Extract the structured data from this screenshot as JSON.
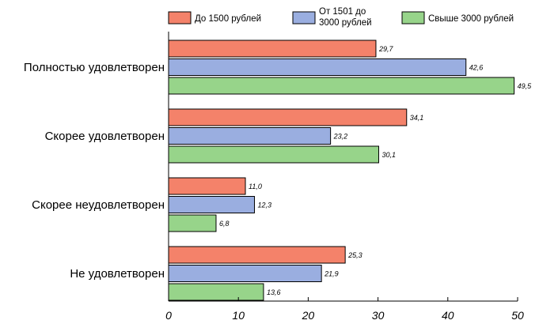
{
  "chart_data": {
    "type": "bar",
    "orientation": "horizontal",
    "title": "",
    "xlabel": "",
    "ylabel": "",
    "categories": [
      "Полностью удовлетворен",
      "Скорее удовлетворен",
      "Скорее неудовлетворен",
      "Не удовлетворен"
    ],
    "series": [
      {
        "name": "До 1500 рублей",
        "color": "#f4826a",
        "values": [
          29.7,
          34.1,
          11.0,
          25.3
        ],
        "labels": [
          "29,7",
          "34,1",
          "11,0",
          "25,3"
        ]
      },
      {
        "name_lines": [
          "От 1501 до",
          "3000 рублей"
        ],
        "color": "#9aaee0",
        "values": [
          42.6,
          23.2,
          12.3,
          21.9
        ],
        "labels": [
          "42,6",
          "23,2",
          "12,3",
          "21,9"
        ]
      },
      {
        "name": "Свыше 3000 рублей",
        "color": "#97d48a",
        "values": [
          49.5,
          30.1,
          6.8,
          13.6
        ],
        "labels": [
          "49,5",
          "30,1",
          "6,8",
          "13,6"
        ]
      }
    ],
    "xlim": [
      0,
      50
    ],
    "xticks": [
      0,
      10,
      20,
      30,
      40,
      50
    ],
    "grid": false,
    "legend_position": "top"
  }
}
